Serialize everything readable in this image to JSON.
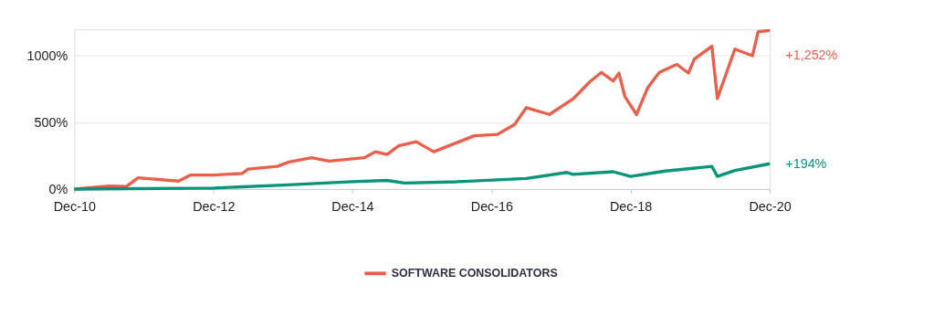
{
  "chart_data": {
    "type": "line",
    "xlim": [
      "2010-12",
      "2020-12"
    ],
    "xticks": [
      {
        "value": "2010-12",
        "label": "Dec-10"
      },
      {
        "value": "2012-12",
        "label": "Dec-12"
      },
      {
        "value": "2014-12",
        "label": "Dec-14"
      },
      {
        "value": "2016-12",
        "label": "Dec-16"
      },
      {
        "value": "2018-12",
        "label": "Dec-18"
      },
      {
        "value": "2020-12",
        "label": "Dec-20"
      }
    ],
    "ylim": [
      0,
      1200
    ],
    "yticks": [
      {
        "value": 0,
        "label": "0%"
      },
      {
        "value": 500,
        "label": "500%"
      },
      {
        "value": 1000,
        "label": "1000%"
      }
    ],
    "grid": "y",
    "legend": "bottom",
    "line_style": "solid",
    "series": [
      {
        "name": "SOFTWARE CONSOLIDATORS",
        "color": "#e8604c",
        "x": [
          "2010-12",
          "2011-06",
          "2011-09",
          "2011-11",
          "2012-06",
          "2012-08",
          "2012-12",
          "2013-05",
          "2013-06",
          "2013-11",
          "2014-01",
          "2014-05",
          "2014-08",
          "2015-02",
          "2015-04",
          "2015-06",
          "2015-08",
          "2015-11",
          "2016-02",
          "2016-09",
          "2017-01",
          "2017-04",
          "2017-06",
          "2017-10",
          "2018-02",
          "2018-05",
          "2018-07",
          "2018-09",
          "2018-10",
          "2018-11",
          "2019-01",
          "2019-03",
          "2019-05",
          "2019-08",
          "2019-10",
          "2019-11",
          "2020-02",
          "2020-03",
          "2020-06",
          "2020-09",
          "2020-10",
          "2020-12"
        ],
        "values": [
          0,
          22,
          20,
          85,
          60,
          105,
          105,
          117,
          150,
          170,
          203,
          235,
          210,
          235,
          280,
          260,
          325,
          355,
          280,
          400,
          410,
          485,
          610,
          560,
          675,
          805,
          875,
          810,
          870,
          695,
          560,
          760,
          875,
          935,
          870,
          975,
          1072,
          680,
          1050,
          1000,
          1180,
          1190
        ]
      },
      {
        "color": "#0a9479",
        "x": [
          "2010-12",
          "2012-12",
          "2013-12",
          "2014-12",
          "2015-06",
          "2015-09",
          "2016-06",
          "2017-06",
          "2018-01",
          "2018-02",
          "2018-09",
          "2018-12",
          "2019-06",
          "2020-02",
          "2020-03",
          "2020-06",
          "2020-12"
        ],
        "values": [
          0,
          8,
          30,
          55,
          65,
          45,
          55,
          80,
          125,
          110,
          130,
          95,
          135,
          170,
          95,
          140,
          190
        ]
      }
    ],
    "annotations": [
      "+1,252%",
      "+194%"
    ]
  }
}
